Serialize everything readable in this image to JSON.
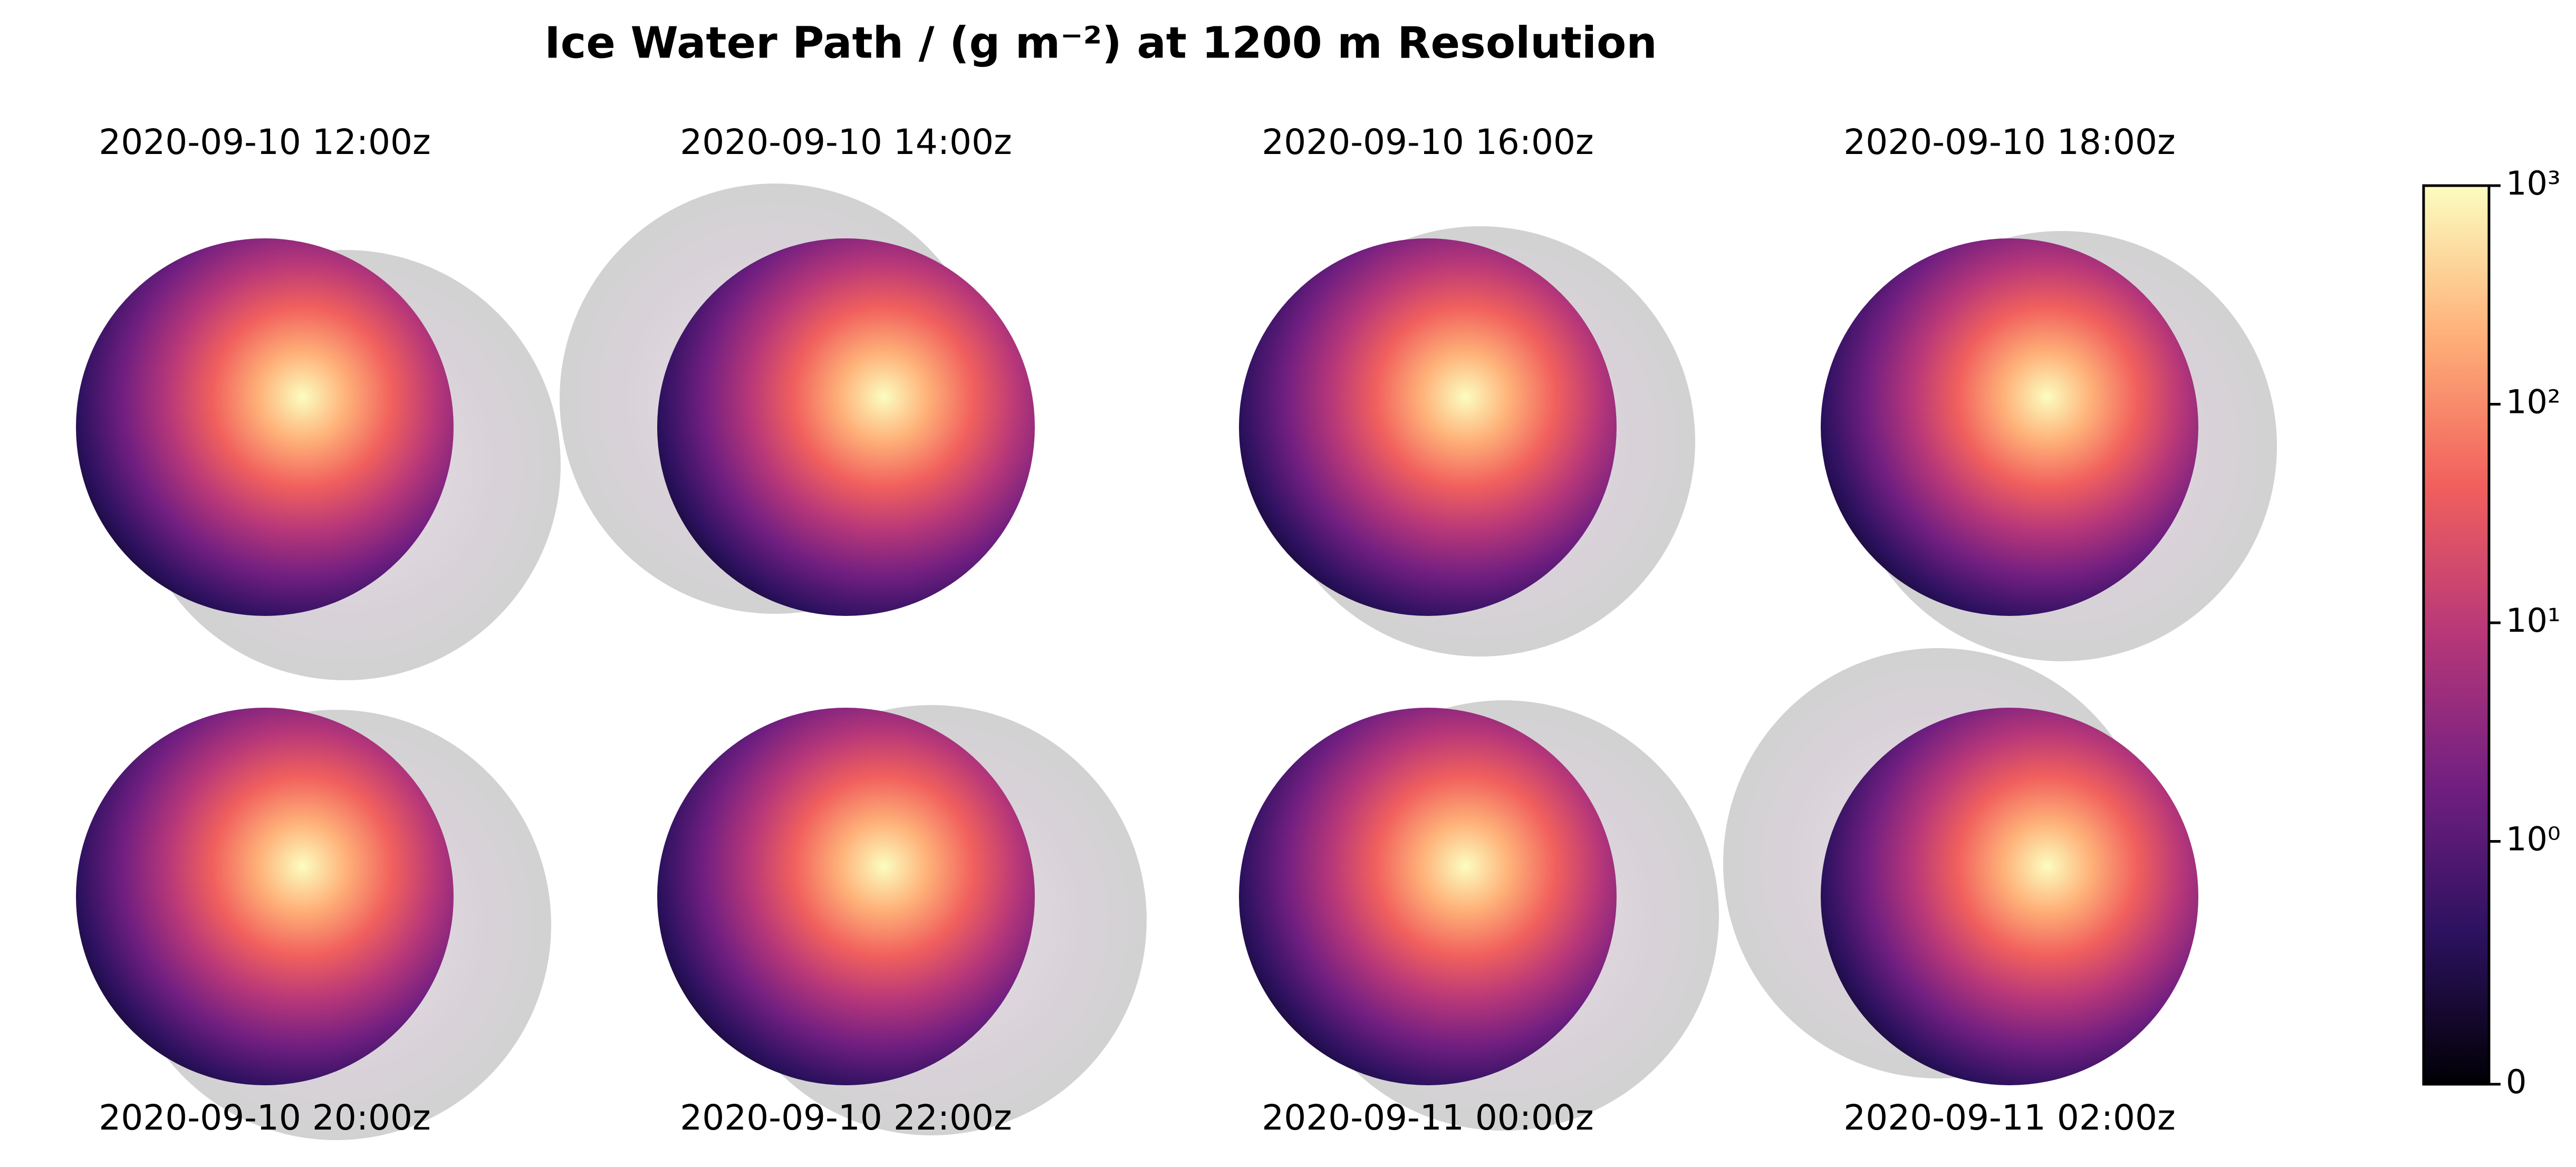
{
  "chart_data": {
    "type": "image-grid",
    "title": "Ice Water Path / (g m⁻²) at 1200 m Resolution",
    "panels": [
      {
        "title": "2020-09-10 12:00z"
      },
      {
        "title": "2020-09-10 14:00z"
      },
      {
        "title": "2020-09-10 16:00z"
      },
      {
        "title": "2020-09-10 18:00z"
      },
      {
        "title": "2020-09-10 20:00z"
      },
      {
        "title": "2020-09-10 22:00z"
      },
      {
        "title": "2020-09-11 00:00z"
      },
      {
        "title": "2020-09-11 02:00z"
      }
    ],
    "colorbar": {
      "cmap": "magma",
      "scale": "symlog",
      "linthresh": 1,
      "lim": [
        0,
        1000
      ],
      "ticks": [
        {
          "value": 0,
          "label": "0"
        },
        {
          "value": 1,
          "label": "10⁰"
        },
        {
          "value": 10,
          "label": "10¹"
        },
        {
          "value": 100,
          "label": "10²"
        },
        {
          "value": 1000,
          "label": "10³"
        }
      ]
    }
  }
}
